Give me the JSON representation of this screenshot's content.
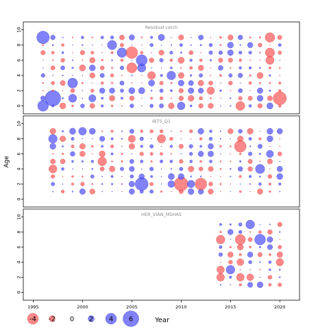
{
  "chart_data": {
    "type": "scatter",
    "subtype": "bubble-residuals",
    "ylabel": "Age",
    "xlabel": "Year",
    "x_ticks": [
      1995,
      2000,
      2005,
      2010,
      2015,
      2020
    ],
    "xlim": [
      1994,
      2022
    ],
    "colors": {
      "positive": "#5050f5",
      "negative": "#fa5a5a"
    },
    "legend": {
      "placement": "bottom",
      "items": [
        {
          "label": "-4",
          "value": -4
        },
        {
          "label": "-2",
          "value": -2
        },
        {
          "label": "0",
          "value": 0
        },
        {
          "label": "2",
          "value": 2
        },
        {
          "label": "4",
          "value": 4
        },
        {
          "label": "6",
          "value": 6
        }
      ]
    },
    "panels": [
      {
        "title": "Residual catch",
        "ylim": [
          -0.5,
          10.5
        ],
        "y_ticks": [
          0,
          2,
          4,
          6,
          8,
          10
        ],
        "years": [
          1996,
          2020
        ],
        "ages": [
          0,
          9
        ],
        "seed": 11,
        "overrides": [
          [
            1996,
            9,
            4.2
          ],
          [
            1996,
            0,
            3.6
          ],
          [
            1997,
            1,
            5.2
          ],
          [
            1996,
            1,
            1.6
          ],
          [
            2005,
            7,
            -3.9
          ],
          [
            2005,
            5,
            -3.4
          ],
          [
            2006,
            6,
            3.7
          ],
          [
            2006,
            5,
            2.8
          ],
          [
            2003,
            8,
            3.1
          ],
          [
            1999,
            3,
            3.3
          ],
          [
            1999,
            1,
            2.7
          ],
          [
            2020,
            1,
            -4.4
          ],
          [
            2019,
            9,
            -3.2
          ],
          [
            2019,
            7,
            -3.1
          ],
          [
            2019,
            6,
            -2.8
          ],
          [
            2016,
            0,
            -3.0
          ],
          [
            2019,
            0,
            2.1
          ],
          [
            2010,
            0,
            2.6
          ],
          [
            2015,
            9,
            -1.8
          ],
          [
            2013,
            2,
            -2.5
          ],
          [
            2004,
            7,
            3.2
          ],
          [
            2001,
            1,
            2.4
          ],
          [
            2007,
            4,
            -2.6
          ],
          [
            2009,
            4,
            2.9
          ]
        ]
      },
      {
        "title": "IBTS_Q1",
        "ylim": [
          -0.5,
          10.5
        ],
        "y_ticks": [
          0,
          2,
          4,
          6,
          8,
          10
        ],
        "years": [
          1997,
          2020
        ],
        "ages": [
          1,
          9
        ],
        "seed": 29,
        "overrides": [
          [
            2010,
            2,
            -4.6
          ],
          [
            2012,
            2,
            -3.9
          ],
          [
            2006,
            2,
            4.3
          ],
          [
            2016,
            7,
            -3.9
          ],
          [
            2018,
            4,
            3.1
          ],
          [
            1997,
            4,
            -2.7
          ],
          [
            1997,
            8,
            2.9
          ],
          [
            2000,
            9,
            2.6
          ],
          [
            2002,
            5,
            -2.9
          ],
          [
            2008,
            8,
            -2.8
          ],
          [
            2011,
            2,
            2.5
          ],
          [
            2009,
            2,
            2.3
          ],
          [
            2019,
            6,
            2.4
          ],
          [
            1999,
            9,
            2.1
          ],
          [
            2005,
            8,
            -2.4
          ]
        ]
      },
      {
        "title": "HER_VIAN_MSHAS",
        "ylim": [
          -0.5,
          10.5
        ],
        "y_ticks": [
          0,
          2,
          4,
          6,
          8,
          10
        ],
        "years": [
          2014,
          2020
        ],
        "ages": [
          1,
          9
        ],
        "seed": 47,
        "overrides": [
          [
            2017,
            9,
            2.9
          ],
          [
            2018,
            7,
            3.6
          ],
          [
            2016,
            7,
            -3.4
          ],
          [
            2014,
            7,
            -2.9
          ],
          [
            2015,
            3,
            2.9
          ],
          [
            2014,
            3,
            -2.5
          ],
          [
            2016,
            2,
            -2.6
          ],
          [
            2017,
            2,
            -2.3
          ],
          [
            2020,
            4,
            -2.5
          ],
          [
            2014,
            2,
            -2.6
          ],
          [
            2018,
            1,
            2.0
          ],
          [
            2016,
            4,
            -2.3
          ],
          [
            2019,
            1,
            -1.0
          ],
          [
            2020,
            7,
            -0.2
          ],
          [
            2014,
            9,
            0.8
          ],
          [
            2015,
            9,
            0.6
          ]
        ]
      }
    ]
  }
}
